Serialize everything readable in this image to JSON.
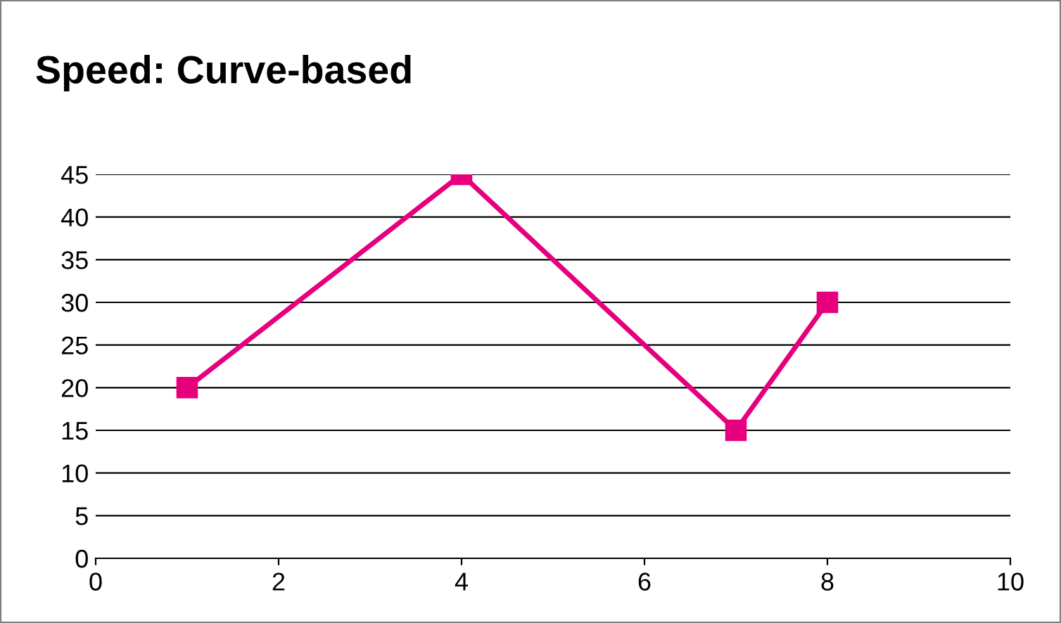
{
  "chart_data": {
    "type": "line",
    "title": "Speed: Curve-based",
    "x": [
      1,
      4,
      7,
      8
    ],
    "series": [
      {
        "color": "#e6007e",
        "values": [
          20,
          45,
          15,
          30
        ]
      }
    ],
    "xlim": [
      0,
      10
    ],
    "xticks": [
      0,
      2,
      4,
      6,
      8,
      10
    ],
    "ylim": [
      0,
      45
    ],
    "yticks": [
      0,
      5,
      10,
      15,
      20,
      25,
      30,
      35,
      40,
      45
    ],
    "grid": "y",
    "marker": "square",
    "line_style": "solid"
  }
}
